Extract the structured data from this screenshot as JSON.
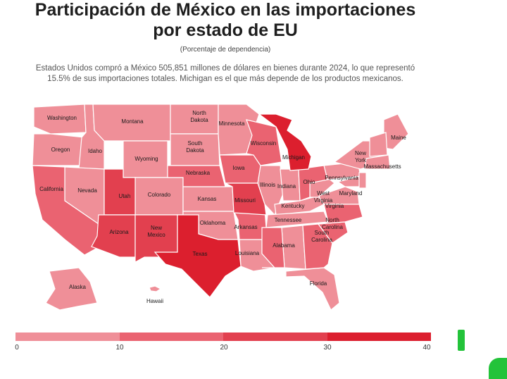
{
  "header": {
    "title_line1": "Participación de México en las importaciones",
    "title_line2": "por estado de EU",
    "subtitle": "(Porcentaje de dependencia)",
    "description_line1": "Estados Unidos compró a México 505,851 millones de dólares en bienes durante 2024, lo que representó",
    "description_line2": "15.5% de sus importaciones totales. Michigan es el que más depende de los productos mexicanos."
  },
  "colors": {
    "band_0_10": "#ef8f98",
    "band_10_20": "#ea6371",
    "band_20_30": "#e2404f",
    "band_30_40": "#dc1f2e",
    "border": "#ffffff"
  },
  "states": {
    "washington": "Washington",
    "oregon": "Oregon",
    "california": "California",
    "idaho": "Idaho",
    "nevada": "Nevada",
    "montana": "Montana",
    "wyoming": "Wyoming",
    "utah": "Utah",
    "colorado": "Colorado",
    "arizona": "Arizona",
    "new_mexico_1": "New",
    "new_mexico_2": "Mexico",
    "north_dakota_1": "North",
    "north_dakota_2": "Dakota",
    "south_dakota_1": "South",
    "south_dakota_2": "Dakota",
    "nebraska": "Nebraska",
    "kansas": "Kansas",
    "oklahoma": "Oklahoma",
    "texas": "Texas",
    "minnesota": "Minnesota",
    "iowa": "Iowa",
    "missouri": "Missouri",
    "arkansas": "Arkansas",
    "louisiana": "Louisiana",
    "wisconsin": "Wisconsin",
    "michigan": "Michigan",
    "illinois": "Illinois",
    "indiana": "Indiana",
    "ohio": "Ohio",
    "kentucky": "Kentucky",
    "tennessee": "Tennessee",
    "alabama": "Alabama",
    "florida": "Florida",
    "north_carolina_1": "North",
    "north_carolina_2": "Carolina",
    "south_carolina_1": "South",
    "south_carolina_2": "Carolina",
    "virginia": "Virginia",
    "west_virginia_1": "West",
    "west_virginia_2": "Virginia",
    "pennsylvania": "Pennsylvania",
    "new_york_1": "New",
    "new_york_2": "York",
    "maryland": "Maryland",
    "massachusetts": "Massachusetts",
    "maine": "Maine",
    "alaska": "Alaska",
    "hawaii": "Hawaii"
  },
  "legend": {
    "ticks": [
      "0",
      "10",
      "20",
      "30",
      "40"
    ]
  }
}
